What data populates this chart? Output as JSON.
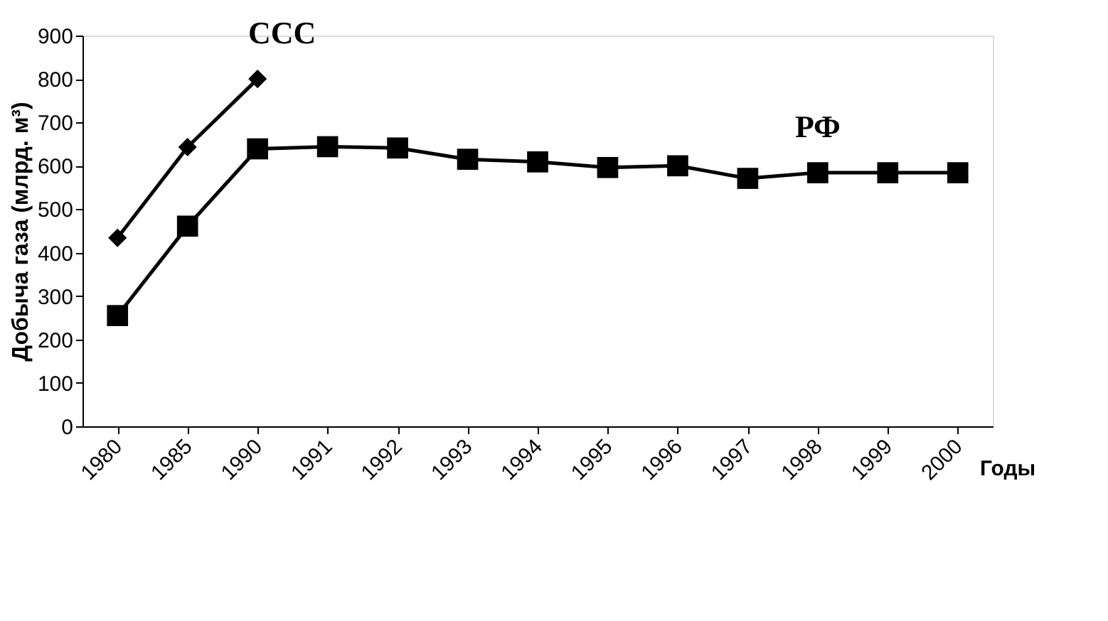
{
  "chart_data": {
    "type": "line",
    "xlabel": "Годы",
    "ylabel": "Добыча газа (млрд. м³)",
    "categories": [
      "1980",
      "1985",
      "1990",
      "1991",
      "1992",
      "1993",
      "1994",
      "1995",
      "1996",
      "1997",
      "1998",
      "1999",
      "2000"
    ],
    "series": [
      {
        "name": "ССС",
        "color": "#000000",
        "marker": "diamond",
        "values": [
          434,
          643,
          800,
          null,
          null,
          null,
          null,
          null,
          null,
          null,
          null,
          null,
          null
        ]
      },
      {
        "name": "РФ",
        "color": "#000000",
        "marker": "square",
        "values": [
          255,
          461,
          639,
          644,
          641,
          615,
          609,
          596,
          600,
          571,
          584,
          584,
          584
        ]
      }
    ],
    "ylim": [
      0,
      900
    ],
    "yticks": [
      0,
      100,
      200,
      300,
      400,
      500,
      600,
      700,
      800,
      900
    ],
    "grid": false,
    "line_style": "solid"
  }
}
